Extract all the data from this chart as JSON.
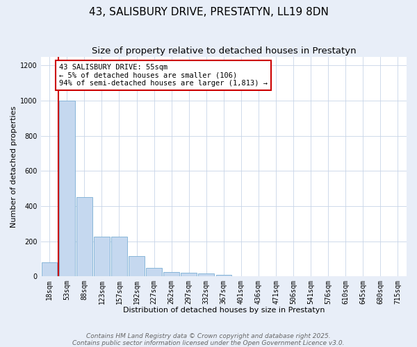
{
  "title1": "43, SALISBURY DRIVE, PRESTATYN, LL19 8DN",
  "title2": "Size of property relative to detached houses in Prestatyn",
  "xlabel": "Distribution of detached houses by size in Prestatyn",
  "ylabel": "Number of detached properties",
  "categories": [
    "18sqm",
    "53sqm",
    "88sqm",
    "123sqm",
    "157sqm",
    "192sqm",
    "227sqm",
    "262sqm",
    "297sqm",
    "332sqm",
    "367sqm",
    "401sqm",
    "436sqm",
    "471sqm",
    "506sqm",
    "541sqm",
    "576sqm",
    "610sqm",
    "645sqm",
    "680sqm",
    "715sqm"
  ],
  "values": [
    80,
    1000,
    450,
    225,
    225,
    115,
    50,
    25,
    20,
    15,
    7,
    0,
    0,
    0,
    0,
    0,
    0,
    0,
    0,
    0,
    0
  ],
  "bar_color": "#c5d8ef",
  "bar_edgecolor": "#7aaed4",
  "vline_color": "#cc0000",
  "annotation_title": "43 SALISBURY DRIVE: 55sqm",
  "annotation_line2": "← 5% of detached houses are smaller (106)",
  "annotation_line3": "94% of semi-detached houses are larger (1,813) →",
  "annotation_box_color": "#ffffff",
  "annotation_box_edgecolor": "#cc0000",
  "ylim": [
    0,
    1250
  ],
  "yticks": [
    0,
    200,
    400,
    600,
    800,
    1000,
    1200
  ],
  "footer1": "Contains HM Land Registry data © Crown copyright and database right 2025.",
  "footer2": "Contains public sector information licensed under the Open Government Licence v3.0.",
  "bg_color": "#e8eef8",
  "plot_bg_color": "#ffffff",
  "title_fontsize": 11,
  "subtitle_fontsize": 9.5,
  "axis_label_fontsize": 8,
  "tick_fontsize": 7,
  "footer_fontsize": 6.5,
  "annotation_fontsize": 7.5
}
